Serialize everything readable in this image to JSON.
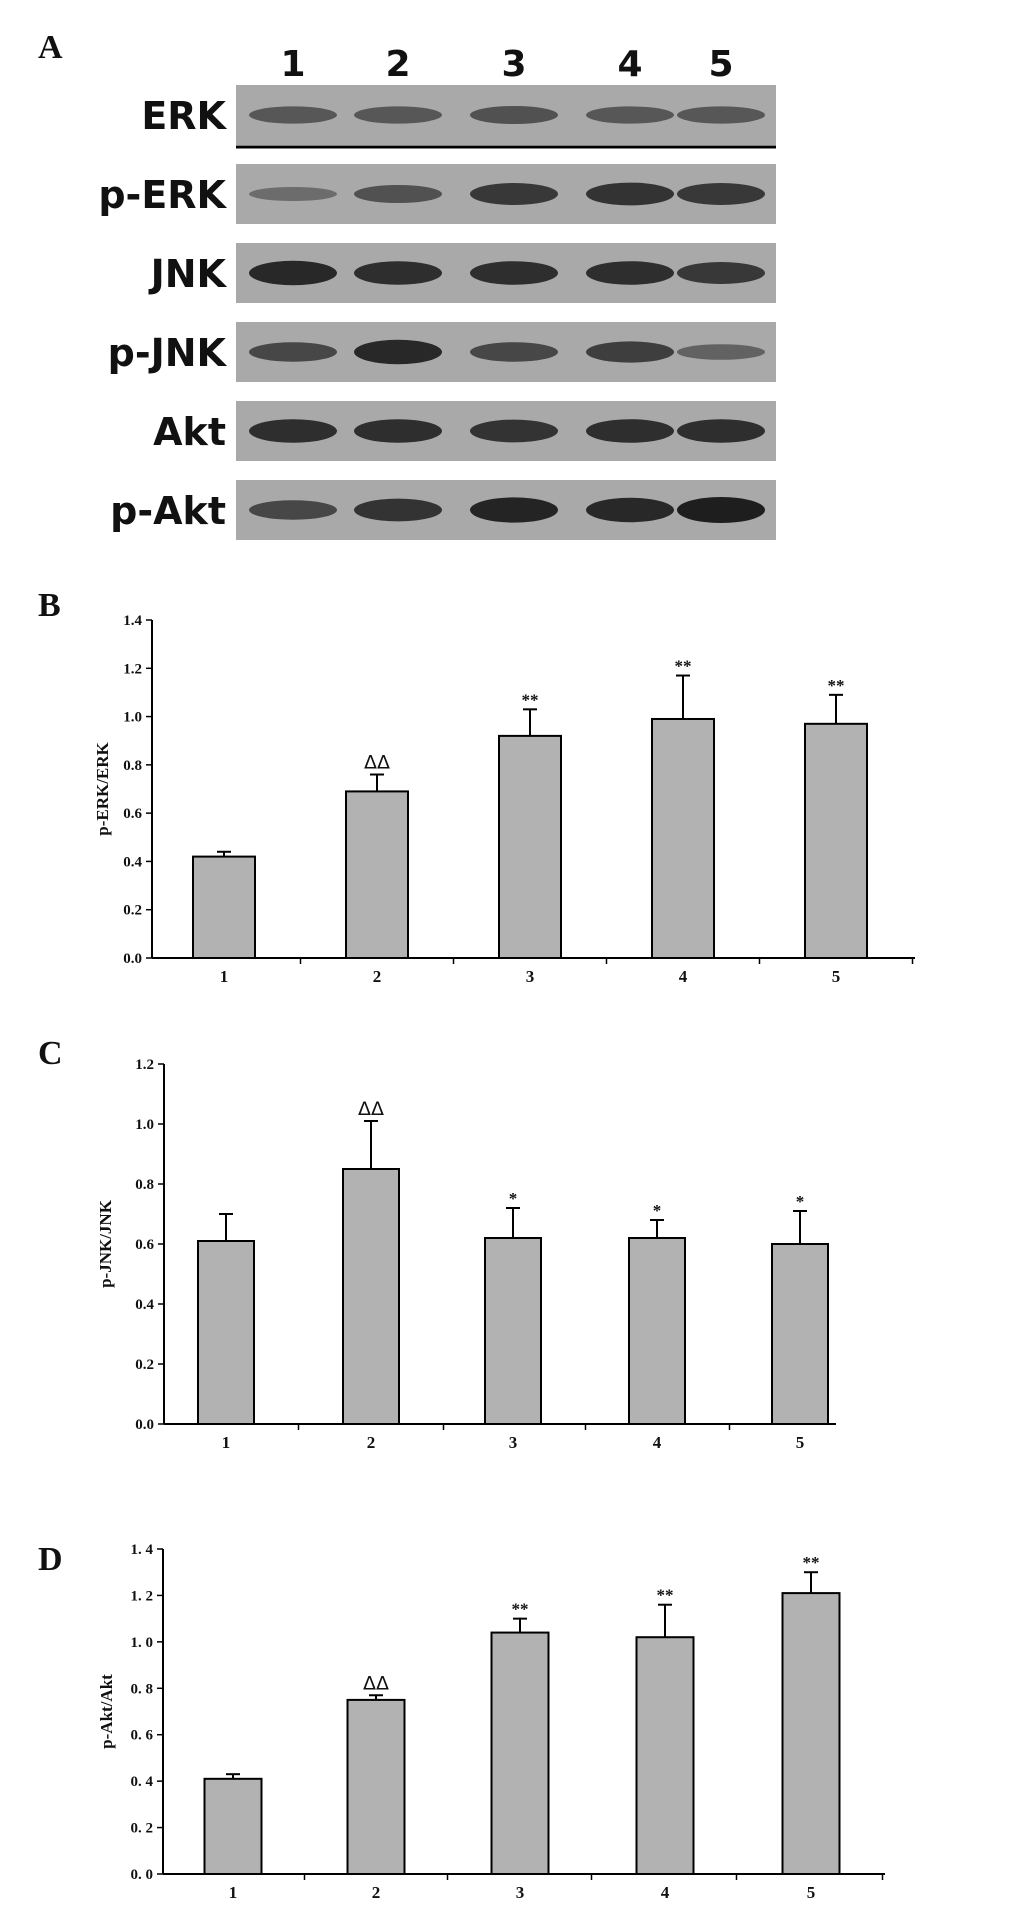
{
  "panel_A": {
    "letter": "A",
    "lanes": [
      "1",
      "2",
      "3",
      "4",
      "5"
    ],
    "blots": [
      {
        "label": "ERK",
        "intensities": [
          0.45,
          0.45,
          0.5,
          0.45,
          0.45
        ]
      },
      {
        "label": "p-ERK",
        "intensities": [
          0.25,
          0.5,
          0.75,
          0.8,
          0.75
        ]
      },
      {
        "label": "JNK",
        "intensities": [
          0.9,
          0.85,
          0.85,
          0.85,
          0.75
        ]
      },
      {
        "label": "p-JNK",
        "intensities": [
          0.6,
          0.9,
          0.6,
          0.7,
          0.35
        ]
      },
      {
        "label": "Akt",
        "intensities": [
          0.85,
          0.85,
          0.8,
          0.85,
          0.85
        ]
      },
      {
        "label": "p-Akt",
        "intensities": [
          0.6,
          0.8,
          0.95,
          0.9,
          1.0
        ]
      }
    ],
    "colors": {
      "blot_bg": "#a9a9a9",
      "band": "#1e1e1e"
    }
  },
  "chart_data": [
    {
      "panel": "B",
      "type": "bar",
      "ylabel": "p-ERK/ERK",
      "categories": [
        "1",
        "2",
        "3",
        "4",
        "5"
      ],
      "values": [
        0.42,
        0.69,
        0.92,
        0.99,
        0.97
      ],
      "errors": [
        0.02,
        0.07,
        0.11,
        0.18,
        0.12
      ],
      "annotations": [
        "",
        "ΔΔ",
        "**",
        "**",
        "**"
      ],
      "ylim": [
        0,
        1.4
      ],
      "yticks": [
        "0.0",
        "0.2",
        "0.4",
        "0.6",
        "0.8",
        "1.0",
        "1.2",
        "1.4"
      ],
      "grid": false,
      "bar_color": "#b2b2b2"
    },
    {
      "panel": "C",
      "type": "bar",
      "ylabel": "p-JNK/JNK",
      "categories": [
        "1",
        "2",
        "3",
        "4",
        "5"
      ],
      "values": [
        0.61,
        0.85,
        0.62,
        0.62,
        0.6
      ],
      "errors": [
        0.09,
        0.16,
        0.1,
        0.06,
        0.11
      ],
      "annotations": [
        "",
        "ΔΔ",
        "*",
        "*",
        "*"
      ],
      "ylim": [
        0,
        1.2
      ],
      "yticks": [
        "0.0",
        "0.2",
        "0.4",
        "0.6",
        "0.8",
        "1.0",
        "1.2"
      ],
      "grid": false,
      "bar_color": "#b2b2b2"
    },
    {
      "panel": "D",
      "type": "bar",
      "ylabel": "p-Akt/Akt",
      "categories": [
        "1",
        "2",
        "3",
        "4",
        "5"
      ],
      "values": [
        0.41,
        0.75,
        1.04,
        1.02,
        1.21
      ],
      "errors": [
        0.02,
        0.02,
        0.06,
        0.14,
        0.09
      ],
      "annotations": [
        "",
        "ΔΔ",
        "**",
        "**",
        "**"
      ],
      "ylim": [
        0,
        1.4
      ],
      "yticks": [
        "0. 0",
        "0. 2",
        "0. 4",
        "0. 6",
        "0. 8",
        "1. 0",
        "1. 2",
        "1. 4"
      ],
      "grid": false,
      "bar_color": "#b2b2b2"
    }
  ]
}
